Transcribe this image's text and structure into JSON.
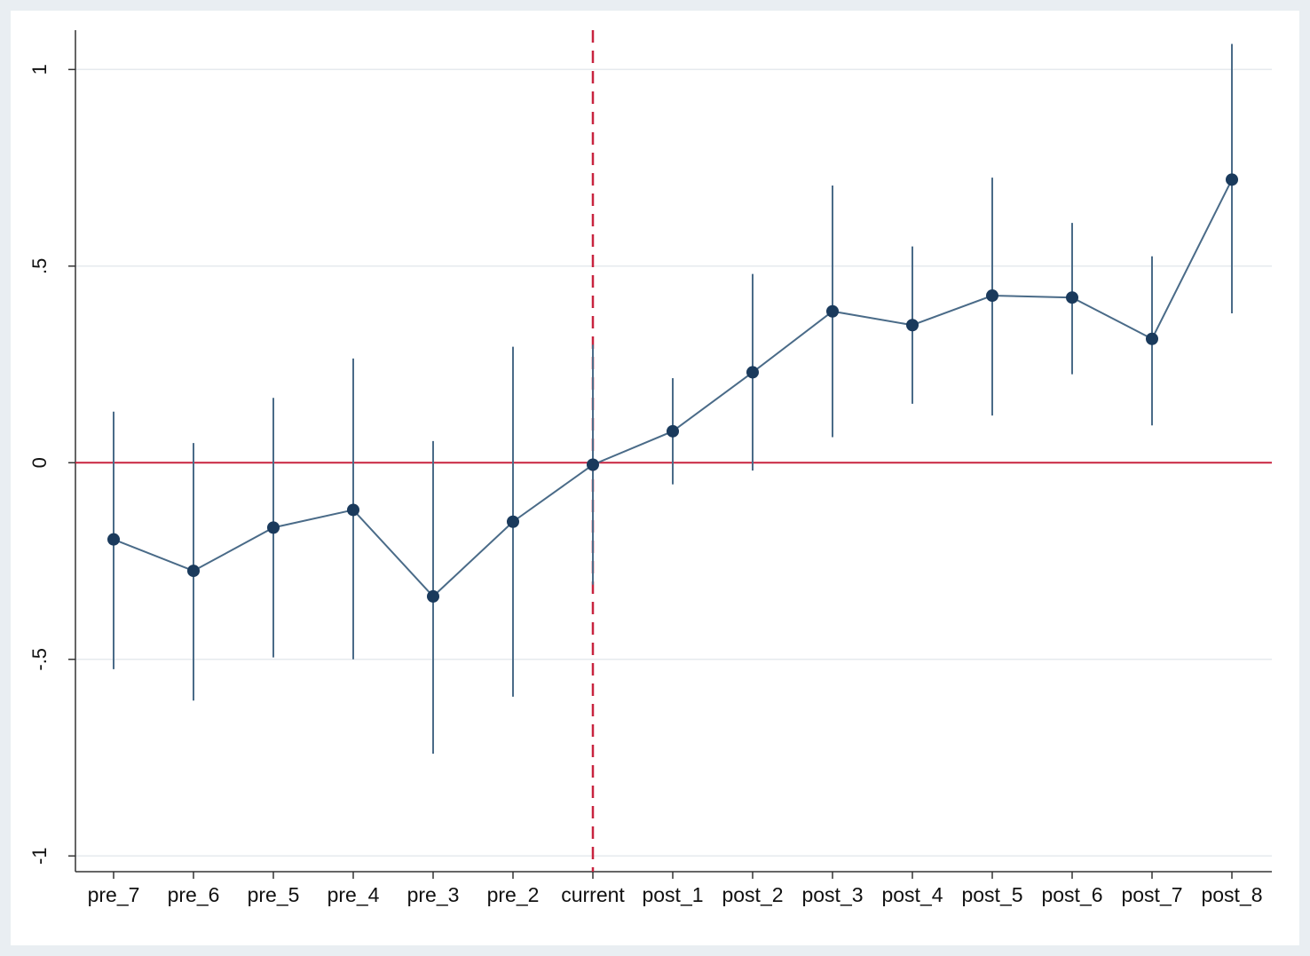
{
  "chart_data": {
    "type": "line",
    "title": "",
    "xlabel": "",
    "ylabel": "",
    "categories": [
      "pre_7",
      "pre_6",
      "pre_5",
      "pre_4",
      "pre_3",
      "pre_2",
      "current",
      "post_1",
      "post_2",
      "post_3",
      "post_4",
      "post_5",
      "post_6",
      "post_7",
      "post_8"
    ],
    "series": [
      {
        "values": [
          -0.195,
          -0.275,
          -0.165,
          -0.12,
          -0.34,
          -0.15,
          -0.005,
          0.08,
          0.23,
          0.385,
          0.35,
          0.425,
          0.42,
          0.315,
          0.72
        ],
        "ci_lower": [
          -0.525,
          -0.605,
          -0.495,
          -0.5,
          -0.74,
          -0.595,
          -0.31,
          -0.055,
          -0.02,
          0.065,
          0.15,
          0.12,
          0.225,
          0.095,
          0.38
        ],
        "ci_upper": [
          0.13,
          0.05,
          0.165,
          0.265,
          0.055,
          0.295,
          0.3,
          0.215,
          0.48,
          0.705,
          0.55,
          0.725,
          0.61,
          0.525,
          1.065
        ]
      }
    ],
    "yticks": [
      -1,
      -0.5,
      0,
      0.5,
      1
    ],
    "ytick_labels": [
      "-1",
      "-.5",
      "0",
      ".5",
      "1"
    ],
    "ylim": [
      -1.04,
      1.1
    ],
    "grid": true,
    "reference_lines": {
      "horizontal_y": 0,
      "vertical_at": "current"
    },
    "colors": {
      "series": "#1a3a5c",
      "line": "#4a6b88",
      "reference": "#c8233f",
      "grid": "#e6eaee"
    }
  }
}
